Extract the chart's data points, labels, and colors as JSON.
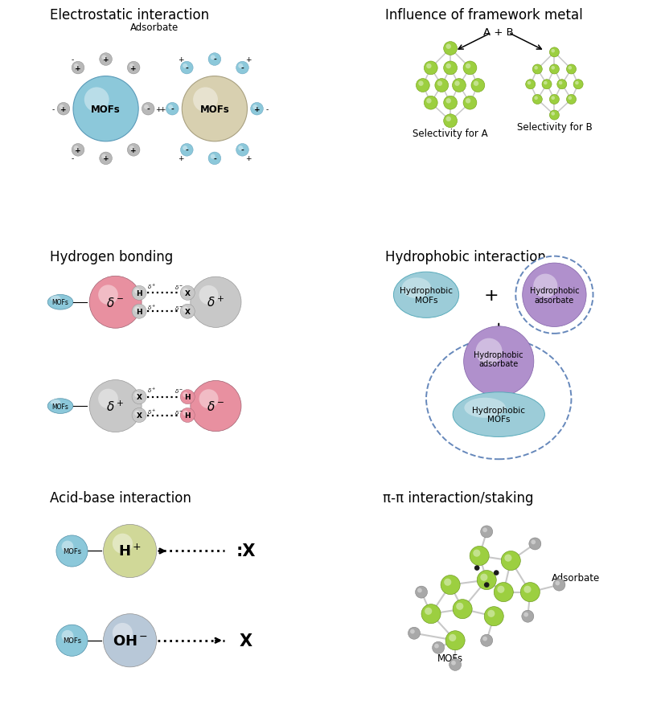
{
  "title_fontsize": 12,
  "background_color": "#ffffff",
  "panel_titles": {
    "electrostatic": "Electrostatic interaction",
    "framework": "Influence of framework metal",
    "hydrogen": "Hydrogen bonding",
    "hydrophobic": "Hydrophobic interaction",
    "acid_base": "Acid-base interaction",
    "pi_pi": "π-π interaction/staking"
  },
  "mof_blue_color": "#8cc8da",
  "mof_cream_color": "#d8d0b0",
  "small_ball_gray": "#b8b8b8",
  "small_ball_blue": "#8cc8da",
  "green_node_color": "#9ccf40",
  "pink_color": "#e890a0",
  "purple_color": "#b090cc",
  "light_blue_color": "#9cccd8",
  "gray_bond_color": "#c8c8c8",
  "hplus_color": "#d0d898",
  "ohminus_color": "#b8c8d8"
}
